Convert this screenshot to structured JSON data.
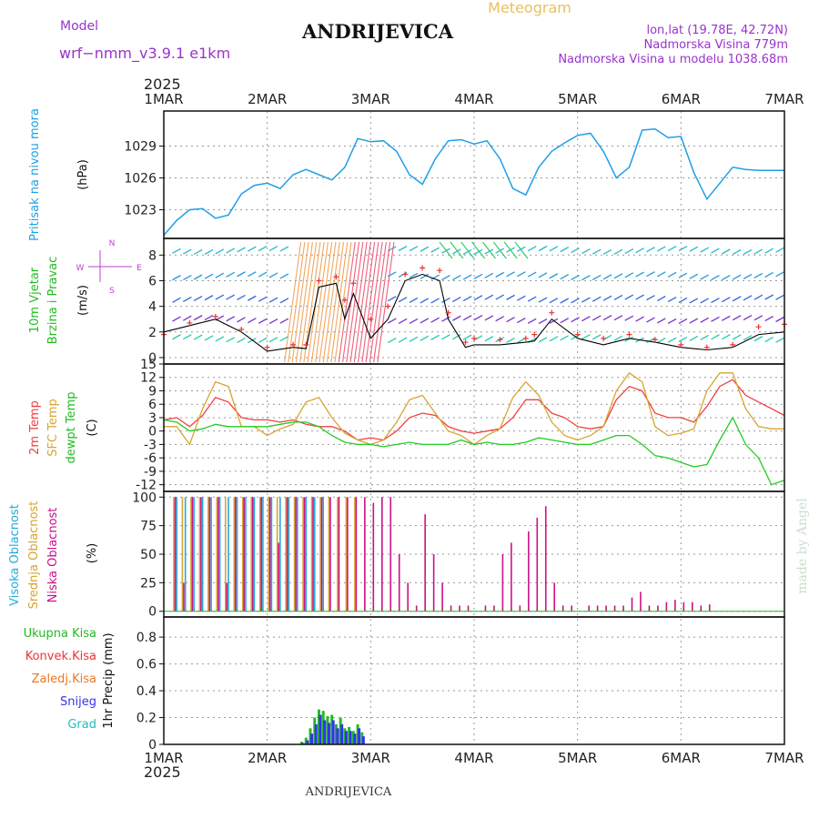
{
  "header": {
    "model_label": "Model",
    "model_name": "wrf−nmm_v3.9.1  e1km",
    "title": "ANDRIJEVICA",
    "meteogram_label": "Meteogram",
    "lonlat": "lon,lat (19.78E, 42.72N)",
    "elevation": "Nadmorska Visina 779m",
    "model_elevation": "Nadmorska Visina u modelu 1038.68m",
    "year": "2025",
    "footer_title": "ANDRIJEVICA",
    "watermark": "made by Angel"
  },
  "time_axis": {
    "labels": [
      "1MAR",
      "2MAR",
      "3MAR",
      "4MAR",
      "5MAR",
      "6MAR",
      "7MAR"
    ],
    "range_hours": [
      0,
      144
    ]
  },
  "colors": {
    "pressure": "#1ea0e6",
    "temp2m": "#ee4040",
    "sfc_temp": "#d8a430",
    "dewpoint": "#22cc22",
    "high_cloud": "#22aadd",
    "mid_cloud": "#d8a430",
    "low_cloud": "#cc1188",
    "total_precip": "#22bb22",
    "conv_precip": "#ee3333",
    "snow": "#3333ee",
    "wind_speed": "#000000",
    "gust": "#ee3333"
  },
  "panels": {
    "pressure": {
      "labels": [
        "Pritisak na nivou mora",
        "(hPa)"
      ],
      "ticks": [
        1023,
        1026,
        1029
      ],
      "ylim": [
        1020.3,
        1032.3
      ]
    },
    "wind": {
      "labels": [
        "10m Vjetar",
        "Brzina i Pravac",
        "(m/s)"
      ],
      "compass": [
        "N",
        "W",
        "E",
        "S"
      ],
      "ticks": [
        0,
        2,
        4,
        6,
        8
      ],
      "ylim": [
        -0.5,
        9.3
      ]
    },
    "temperature": {
      "labels": [
        "2m Temp",
        "SFC Temp",
        "dewpt Temp",
        "(C)"
      ],
      "ticks": [
        -12,
        -9,
        -6,
        -3,
        0,
        3,
        6,
        9,
        12,
        15
      ],
      "ylim": [
        -13.5,
        15
      ]
    },
    "clouds": {
      "labels": [
        "Visoka Oblacnost",
        "Srednja Oblacnost",
        "Niska Oblacnost",
        "(%)"
      ],
      "ticks": [
        0,
        25,
        50,
        75,
        100
      ],
      "ylim": [
        -5,
        105
      ]
    },
    "precip": {
      "labels": [
        "1hr Precip (mm)"
      ],
      "legend": [
        "Ukupna Kisa",
        "Konvek.Kisa",
        "Zaledj.Kisa",
        "Snijeg",
        "Grad"
      ],
      "legend_colors": [
        "#22bb22",
        "#ee3333",
        "#ee7722",
        "#3333ee",
        "#22bbbb"
      ],
      "ticks": [
        0,
        0.2,
        0.4,
        0.6,
        0.8
      ],
      "ylim": [
        0,
        0.95
      ]
    }
  },
  "chart_data": [
    {
      "type": "line",
      "name": "pressure",
      "x_unit": "hours since 1MAR 00",
      "x": [
        0,
        3,
        6,
        9,
        12,
        15,
        18,
        21,
        24,
        27,
        30,
        33,
        36,
        39,
        42,
        45,
        48,
        51,
        54,
        57,
        60,
        63,
        66,
        69,
        72,
        75,
        78,
        81,
        84,
        87,
        90,
        93,
        96,
        99,
        102,
        105,
        108,
        111,
        114,
        117,
        120,
        123,
        126,
        129,
        132,
        135,
        138,
        141,
        144
      ],
      "values": [
        1020.6,
        1022.0,
        1023.0,
        1023.1,
        1022.2,
        1022.5,
        1024.5,
        1025.3,
        1025.5,
        1025.0,
        1026.3,
        1026.8,
        1026.3,
        1025.8,
        1027.0,
        1029.7,
        1029.4,
        1029.5,
        1028.5,
        1026.3,
        1025.4,
        1027.8,
        1029.5,
        1029.6,
        1029.2,
        1029.5,
        1027.8,
        1025.0,
        1024.4,
        1027.0,
        1028.5,
        1029.3,
        1030.0,
        1030.2,
        1028.5,
        1026.0,
        1027.0,
        1030.5,
        1030.6,
        1029.8,
        1029.9,
        1026.5,
        1024.0,
        1025.5,
        1027.0,
        1026.8,
        1026.7,
        1026.7,
        1026.7
      ]
    },
    {
      "type": "line",
      "name": "wind",
      "x_unit": "hours since 1MAR 00",
      "x": [
        0,
        6,
        12,
        18,
        24,
        30,
        33,
        36,
        40,
        42,
        44,
        48,
        52,
        56,
        60,
        64,
        66,
        70,
        72,
        78,
        84,
        86,
        90,
        96,
        102,
        108,
        114,
        120,
        126,
        132,
        138,
        144
      ],
      "series": [
        {
          "values": [
            2.0,
            2.5,
            3.0,
            2.0,
            0.5,
            0.8,
            0.7,
            5.5,
            5.8,
            3.0,
            5.0,
            1.5,
            3.0,
            6.0,
            6.5,
            6.0,
            3.0,
            0.8,
            1.0,
            1.0,
            1.2,
            1.3,
            3.0,
            1.5,
            1.0,
            1.5,
            1.2,
            0.8,
            0.6,
            0.8,
            1.8,
            2.0
          ]
        },
        {
          "values": [
            1.8,
            2.7,
            3.2,
            2.2,
            0.8,
            1.0,
            1.0,
            6.0,
            6.3,
            4.5,
            5.8,
            3.0,
            4.0,
            6.5,
            7.0,
            6.8,
            3.5,
            1.2,
            1.5,
            1.4,
            1.5,
            1.8,
            3.5,
            1.8,
            1.5,
            1.8,
            1.4,
            1.0,
            0.8,
            1.0,
            2.4,
            2.6
          ]
        }
      ],
      "ylim": [
        -0.5,
        9.3
      ]
    },
    {
      "type": "line",
      "name": "temperature",
      "x_unit": "hours since 1MAR 00",
      "x": [
        0,
        3,
        6,
        9,
        12,
        15,
        18,
        21,
        24,
        27,
        30,
        33,
        36,
        39,
        42,
        45,
        48,
        51,
        54,
        57,
        60,
        63,
        66,
        69,
        72,
        75,
        78,
        81,
        84,
        87,
        90,
        93,
        96,
        99,
        102,
        105,
        108,
        111,
        114,
        117,
        120,
        123,
        126,
        129,
        132,
        135,
        138,
        141,
        144
      ],
      "series": [
        {
          "values": [
            2.5,
            3.0,
            1.0,
            3.5,
            7.5,
            6.5,
            3.0,
            2.5,
            2.5,
            2.0,
            2.5,
            1.5,
            1.0,
            1.0,
            0.0,
            -2.0,
            -1.5,
            -2.0,
            0.0,
            3.0,
            4.0,
            3.5,
            1.0,
            0.0,
            -0.5,
            0.0,
            0.5,
            3.0,
            7.0,
            7.0,
            4.0,
            3.0,
            1.0,
            0.5,
            1.0,
            7.0,
            10.0,
            9.0,
            4.0,
            3.0,
            3.0,
            2.0,
            5.5,
            10.0,
            11.5,
            8.0,
            6.5,
            5.0,
            3.5
          ]
        },
        {
          "values": [
            1.0,
            1.0,
            -3.0,
            5.0,
            11.0,
            10.0,
            1.0,
            1.0,
            -1.0,
            0.5,
            1.5,
            6.5,
            7.5,
            3.0,
            -0.5,
            -2.0,
            -3.0,
            -2.0,
            2.0,
            7.0,
            8.0,
            4.0,
            0.0,
            -1.0,
            -3.0,
            -1.0,
            0.5,
            7.5,
            11.0,
            8.0,
            2.0,
            -1.0,
            -2.0,
            -1.0,
            1.0,
            9.0,
            13.0,
            11.0,
            1.0,
            -1.0,
            -0.5,
            0.5,
            9.0,
            13.0,
            13.0,
            5.0,
            1.0,
            0.5,
            0.5
          ]
        },
        {
          "values": [
            2.5,
            2.0,
            0.0,
            0.5,
            1.5,
            1.0,
            1.0,
            1.0,
            1.0,
            1.5,
            2.0,
            2.0,
            1.0,
            -1.0,
            -2.5,
            -3.0,
            -3.0,
            -3.5,
            -3.0,
            -2.5,
            -3.0,
            -3.0,
            -3.0,
            -2.0,
            -3.0,
            -2.5,
            -3.0,
            -3.0,
            -2.5,
            -1.5,
            -2.0,
            -2.5,
            -3.0,
            -3.0,
            -2.0,
            -1.0,
            -1.0,
            -3.0,
            -5.5,
            -6.0,
            -7.0,
            -8.0,
            -7.5,
            -2.0,
            3.0,
            -3.0,
            -6.0,
            -12.0,
            -11.0
          ]
        }
      ],
      "ylim": [
        -13.5,
        15
      ]
    },
    {
      "type": "bar",
      "name": "clouds",
      "x_unit": "hours since 1MAR 00",
      "series": [
        {
          "x": [
            3,
            5,
            7,
            9,
            11,
            13,
            15,
            17,
            19,
            21,
            23,
            25,
            27,
            29,
            31,
            33,
            35,
            37
          ],
          "values": [
            100,
            100,
            100,
            100,
            100,
            100,
            100,
            100,
            100,
            100,
            100,
            100,
            100,
            100,
            100,
            100,
            100,
            100
          ]
        },
        {
          "x": [
            2,
            4,
            6,
            8,
            10,
            12,
            14,
            16,
            18,
            20,
            22,
            24,
            26,
            28,
            30,
            32,
            34,
            36,
            38,
            40,
            42,
            44
          ],
          "values": [
            100,
            100,
            100,
            100,
            100,
            100,
            100,
            100,
            100,
            100,
            100,
            100,
            100,
            100,
            100,
            100,
            100,
            100,
            100,
            100,
            100,
            100
          ]
        },
        {
          "x": [
            2,
            4,
            6,
            8,
            10,
            12,
            14,
            16,
            18,
            20,
            22,
            24,
            26,
            28,
            30,
            32,
            34,
            36,
            38,
            40,
            42,
            44,
            46,
            48,
            50,
            52,
            54,
            56,
            58,
            60,
            62,
            64,
            66,
            68,
            70,
            74,
            76,
            78,
            80,
            82,
            84,
            86,
            88,
            90,
            92,
            94,
            98,
            100,
            102,
            104,
            106,
            108,
            110,
            112,
            114,
            116,
            118,
            120,
            122,
            124,
            126
          ],
          "values": [
            100,
            25,
            100,
            100,
            100,
            100,
            25,
            100,
            100,
            100,
            100,
            100,
            60,
            100,
            100,
            100,
            100,
            100,
            100,
            100,
            100,
            100,
            100,
            95,
            100,
            100,
            50,
            25,
            5,
            85,
            50,
            25,
            5,
            5,
            5,
            5,
            5,
            50,
            60,
            5,
            70,
            82,
            92,
            25,
            5,
            5,
            5,
            5,
            5,
            5,
            5,
            12,
            17,
            5,
            5,
            8,
            10,
            8,
            8,
            5,
            6
          ]
        }
      ],
      "ylim": [
        -5,
        105
      ]
    },
    {
      "type": "bar",
      "name": "precip",
      "x_unit": "hours since 1MAR 00",
      "series": [
        {
          "x": [
            32,
            33,
            34,
            35,
            36,
            37,
            38,
            39,
            40,
            41,
            42,
            43,
            44,
            45,
            46
          ],
          "values": [
            0.02,
            0.05,
            0.12,
            0.2,
            0.26,
            0.25,
            0.21,
            0.22,
            0.15,
            0.2,
            0.12,
            0.13,
            0.1,
            0.15,
            0.09
          ]
        },
        {
          "x": [
            32,
            33,
            34,
            35,
            36,
            37,
            38,
            39,
            40,
            41,
            42,
            43,
            44,
            45,
            46
          ],
          "values": [
            0.01,
            0.03,
            0.08,
            0.15,
            0.22,
            0.18,
            0.16,
            0.18,
            0.12,
            0.15,
            0.1,
            0.1,
            0.08,
            0.12,
            0.06
          ]
        }
      ],
      "ylim": [
        0,
        0.95
      ]
    }
  ]
}
